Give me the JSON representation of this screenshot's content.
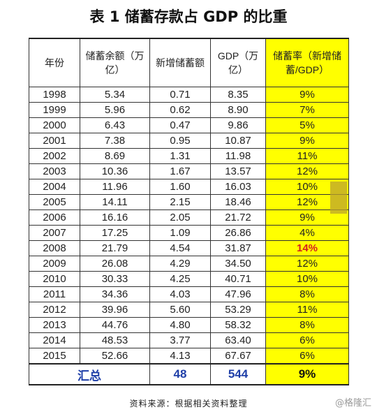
{
  "title": "表 1  储蓄存款占 GDP 的比重",
  "table": {
    "headers": {
      "year": "年份",
      "savings": "储蓄余额（万亿）",
      "new_savings": "新增储蓄额",
      "gdp": "GDP（万亿）",
      "rate": "储蓄率（新增储蓄/GDP）"
    },
    "rows": [
      {
        "year": "1998",
        "savings": "5.34",
        "new_savings": "0.71",
        "gdp": "8.35",
        "rate": "9%"
      },
      {
        "year": "1999",
        "savings": "5.96",
        "new_savings": "0.62",
        "gdp": "8.90",
        "rate": "7%"
      },
      {
        "year": "2000",
        "savings": "6.43",
        "new_savings": "0.47",
        "gdp": "9.86",
        "rate": "5%"
      },
      {
        "year": "2001",
        "savings": "7.38",
        "new_savings": "0.95",
        "gdp": "10.87",
        "rate": "9%"
      },
      {
        "year": "2002",
        "savings": "8.69",
        "new_savings": "1.31",
        "gdp": "11.98",
        "rate": "11%"
      },
      {
        "year": "2003",
        "savings": "10.36",
        "new_savings": "1.67",
        "gdp": "13.57",
        "rate": "12%"
      },
      {
        "year": "2004",
        "savings": "11.96",
        "new_savings": "1.60",
        "gdp": "16.03",
        "rate": "10%"
      },
      {
        "year": "2005",
        "savings": "14.11",
        "new_savings": "2.15",
        "gdp": "18.46",
        "rate": "12%"
      },
      {
        "year": "2006",
        "savings": "16.16",
        "new_savings": "2.05",
        "gdp": "21.72",
        "rate": "9%"
      },
      {
        "year": "2007",
        "savings": "17.25",
        "new_savings": "1.09",
        "gdp": "26.86",
        "rate": "4%"
      },
      {
        "year": "2008",
        "savings": "21.79",
        "new_savings": "4.54",
        "gdp": "31.87",
        "rate": "14%"
      },
      {
        "year": "2009",
        "savings": "26.08",
        "new_savings": "4.29",
        "gdp": "34.50",
        "rate": "12%"
      },
      {
        "year": "2010",
        "savings": "30.33",
        "new_savings": "4.25",
        "gdp": "40.71",
        "rate": "10%"
      },
      {
        "year": "2011",
        "savings": "34.36",
        "new_savings": "4.03",
        "gdp": "47.96",
        "rate": "8%"
      },
      {
        "year": "2012",
        "savings": "39.96",
        "new_savings": "5.60",
        "gdp": "53.29",
        "rate": "11%"
      },
      {
        "year": "2013",
        "savings": "44.76",
        "new_savings": "4.80",
        "gdp": "58.32",
        "rate": "8%"
      },
      {
        "year": "2014",
        "savings": "48.53",
        "new_savings": "3.77",
        "gdp": "63.40",
        "rate": "6%"
      },
      {
        "year": "2015",
        "savings": "52.66",
        "new_savings": "4.13",
        "gdp": "67.67",
        "rate": "6%"
      }
    ],
    "highlight_year": "2008",
    "total": {
      "label": "汇总",
      "new_savings": "48",
      "gdp": "544",
      "rate": "9%"
    }
  },
  "source": "资料来源：根据相关资料整理",
  "watermark": "@格隆汇",
  "colors": {
    "rate_bg": "#ffff00",
    "highlight": "#d42020",
    "total_text": "#1f3fa8"
  }
}
